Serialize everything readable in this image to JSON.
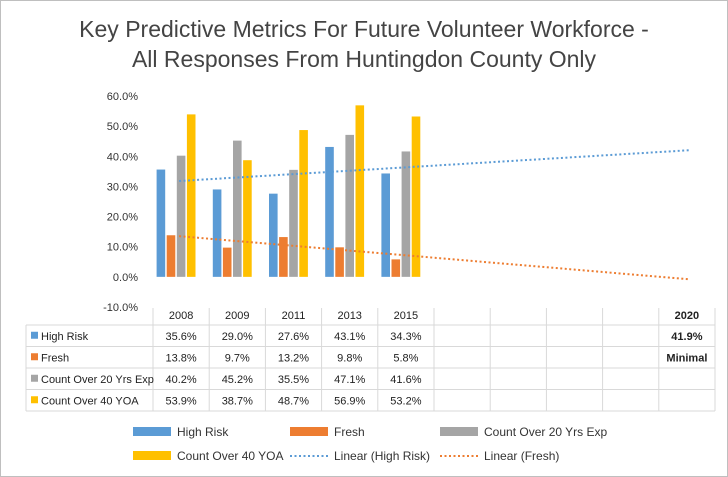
{
  "chart_data": {
    "type": "bar",
    "title": "Key Predictive Metrics For Future Volunteer Workforce - All Responses From Huntingdon County Only",
    "title_lines": [
      "Key Predictive Metrics For Future Volunteer Workforce -",
      "All Responses From Huntingdon County Only"
    ],
    "categories": [
      "2008",
      "2009",
      "2011",
      "2013",
      "2015"
    ],
    "extra_category": "2020",
    "ylim": [
      -10,
      60
    ],
    "yticks": [
      "-10.0%",
      "0.0%",
      "10.0%",
      "20.0%",
      "30.0%",
      "40.0%",
      "50.0%",
      "60.0%"
    ],
    "ytick_values": [
      -10,
      0,
      10,
      20,
      30,
      40,
      50,
      60
    ],
    "grid": false,
    "legend": "bottom",
    "series": [
      {
        "name": "High Risk",
        "color": "#5b9bd5",
        "values": [
          35.6,
          29.0,
          27.6,
          43.1,
          34.3
        ],
        "labels": [
          "35.6%",
          "29.0%",
          "27.6%",
          "43.1%",
          "34.3%"
        ]
      },
      {
        "name": "Fresh",
        "color": "#ed7d31",
        "values": [
          13.8,
          9.7,
          13.2,
          9.8,
          5.8
        ],
        "labels": [
          "13.8%",
          "9.7%",
          "13.2%",
          "9.8%",
          "5.8%"
        ]
      },
      {
        "name": "Count Over 20 Yrs Exp",
        "color": "#a5a5a5",
        "values": [
          40.2,
          45.2,
          35.5,
          47.1,
          41.6
        ],
        "labels": [
          "40.2%",
          "45.2%",
          "35.5%",
          "47.1%",
          "41.6%"
        ]
      },
      {
        "name": "Count Over 40 YOA",
        "color": "#ffc000",
        "values": [
          53.9,
          38.7,
          48.7,
          56.9,
          53.2
        ],
        "labels": [
          "53.9%",
          "38.7%",
          "48.7%",
          "56.9%",
          "53.2%"
        ]
      }
    ],
    "trendlines": [
      {
        "name": "Linear (High Risk)",
        "color": "#5b9bd5",
        "start": 31.8,
        "end": 42.0
      },
      {
        "name": "Linear (Fresh)",
        "color": "#ed7d31",
        "start": 13.5,
        "end": -0.8
      }
    ],
    "projection_2020": {
      "high_risk": "41.9%",
      "fresh": "Minimal"
    }
  }
}
